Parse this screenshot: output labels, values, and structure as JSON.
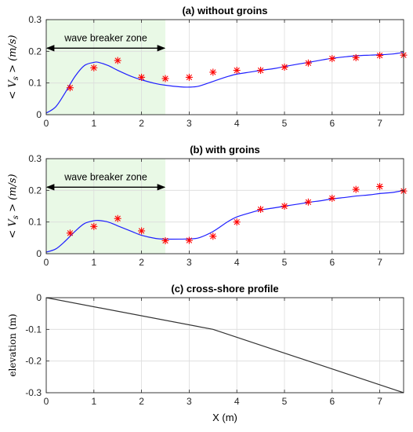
{
  "chart_data": [
    {
      "type": "line",
      "title": "(a) without groins",
      "xlabel": "",
      "ylabel": "< V_s > (m/s)",
      "xlim": [
        0,
        7.5
      ],
      "ylim": [
        0,
        0.3
      ],
      "xticks": [
        0,
        1,
        2,
        3,
        4,
        5,
        6,
        7
      ],
      "yticks": [
        0,
        0.1,
        0.2,
        0.3
      ],
      "grid": true,
      "shaded_region": {
        "x": [
          0,
          2.5
        ],
        "color": "#e9f9e6"
      },
      "annotation": {
        "text": "wave breaker zone",
        "arrow_x": [
          0,
          2.5
        ],
        "arrow_y": 0.21
      },
      "series": [
        {
          "kind": "line",
          "color": "#2020ff",
          "x": [
            0,
            0.2,
            0.4,
            0.6,
            0.8,
            1.0,
            1.1,
            1.3,
            1.5,
            1.8,
            2.0,
            2.3,
            2.5,
            2.8,
            3.0,
            3.2,
            3.5,
            3.8,
            4.0,
            4.3,
            4.5,
            4.8,
            5.0,
            5.3,
            5.5,
            5.8,
            6.0,
            6.3,
            6.5,
            6.8,
            7.0,
            7.3,
            7.5
          ],
          "y": [
            0.005,
            0.025,
            0.07,
            0.12,
            0.155,
            0.165,
            0.165,
            0.155,
            0.14,
            0.12,
            0.11,
            0.098,
            0.093,
            0.088,
            0.087,
            0.09,
            0.105,
            0.12,
            0.128,
            0.135,
            0.14,
            0.146,
            0.152,
            0.16,
            0.165,
            0.173,
            0.178,
            0.183,
            0.186,
            0.188,
            0.189,
            0.192,
            0.197
          ]
        },
        {
          "kind": "marker",
          "marker": "*",
          "color": "#ff0000",
          "x": [
            0.5,
            1.0,
            1.5,
            2.0,
            2.5,
            3.0,
            3.5,
            4.0,
            4.5,
            5.0,
            5.5,
            6.0,
            6.5,
            7.0,
            7.5
          ],
          "y": [
            0.085,
            0.148,
            0.171,
            0.118,
            0.114,
            0.118,
            0.134,
            0.14,
            0.14,
            0.15,
            0.163,
            0.177,
            0.18,
            0.187,
            0.188
          ]
        }
      ]
    },
    {
      "type": "line",
      "title": "(b) with groins",
      "xlabel": "",
      "ylabel": "< V_s > (m/s)",
      "xlim": [
        0,
        7.5
      ],
      "ylim": [
        0,
        0.3
      ],
      "xticks": [
        0,
        1,
        2,
        3,
        4,
        5,
        6,
        7
      ],
      "yticks": [
        0,
        0.1,
        0.2,
        0.3
      ],
      "grid": true,
      "shaded_region": {
        "x": [
          0,
          2.5
        ],
        "color": "#e9f9e6"
      },
      "annotation": {
        "text": "wave breaker zone",
        "arrow_x": [
          0,
          2.5
        ],
        "arrow_y": 0.21
      },
      "series": [
        {
          "kind": "line",
          "color": "#2020ff",
          "x": [
            0,
            0.2,
            0.4,
            0.6,
            0.8,
            1.0,
            1.1,
            1.3,
            1.5,
            1.8,
            2.0,
            2.3,
            2.5,
            2.8,
            3.0,
            3.2,
            3.5,
            3.8,
            4.0,
            4.3,
            4.5,
            4.8,
            5.0,
            5.3,
            5.5,
            5.8,
            6.0,
            6.3,
            6.5,
            6.8,
            7.0,
            7.3,
            7.5
          ],
          "y": [
            0.005,
            0.015,
            0.04,
            0.07,
            0.095,
            0.104,
            0.105,
            0.1,
            0.088,
            0.07,
            0.058,
            0.048,
            0.046,
            0.046,
            0.047,
            0.05,
            0.07,
            0.1,
            0.116,
            0.13,
            0.138,
            0.145,
            0.15,
            0.157,
            0.162,
            0.168,
            0.173,
            0.178,
            0.182,
            0.186,
            0.19,
            0.194,
            0.2
          ]
        },
        {
          "kind": "marker",
          "marker": "*",
          "color": "#ff0000",
          "x": [
            0.5,
            1.0,
            1.5,
            2.0,
            2.5,
            3.0,
            3.5,
            4.0,
            4.5,
            5.0,
            5.5,
            6.0,
            6.5,
            7.0,
            7.5
          ],
          "y": [
            0.065,
            0.086,
            0.111,
            0.072,
            0.041,
            0.042,
            0.055,
            0.1,
            0.14,
            0.15,
            0.163,
            0.175,
            0.203,
            0.212,
            0.198
          ]
        }
      ]
    },
    {
      "type": "line",
      "title": "(c) cross-shore profile",
      "xlabel": "X (m)",
      "ylabel": "elevation (m)",
      "xlim": [
        0,
        7.5
      ],
      "ylim": [
        -0.3,
        0
      ],
      "xticks": [
        0,
        1,
        2,
        3,
        4,
        5,
        6,
        7
      ],
      "yticks": [
        0,
        -0.1,
        -0.2,
        -0.3
      ],
      "grid": true,
      "series": [
        {
          "kind": "line",
          "color": "#333333",
          "x": [
            0,
            3.5,
            7.5
          ],
          "y": [
            0,
            -0.1,
            -0.3
          ]
        }
      ]
    }
  ]
}
